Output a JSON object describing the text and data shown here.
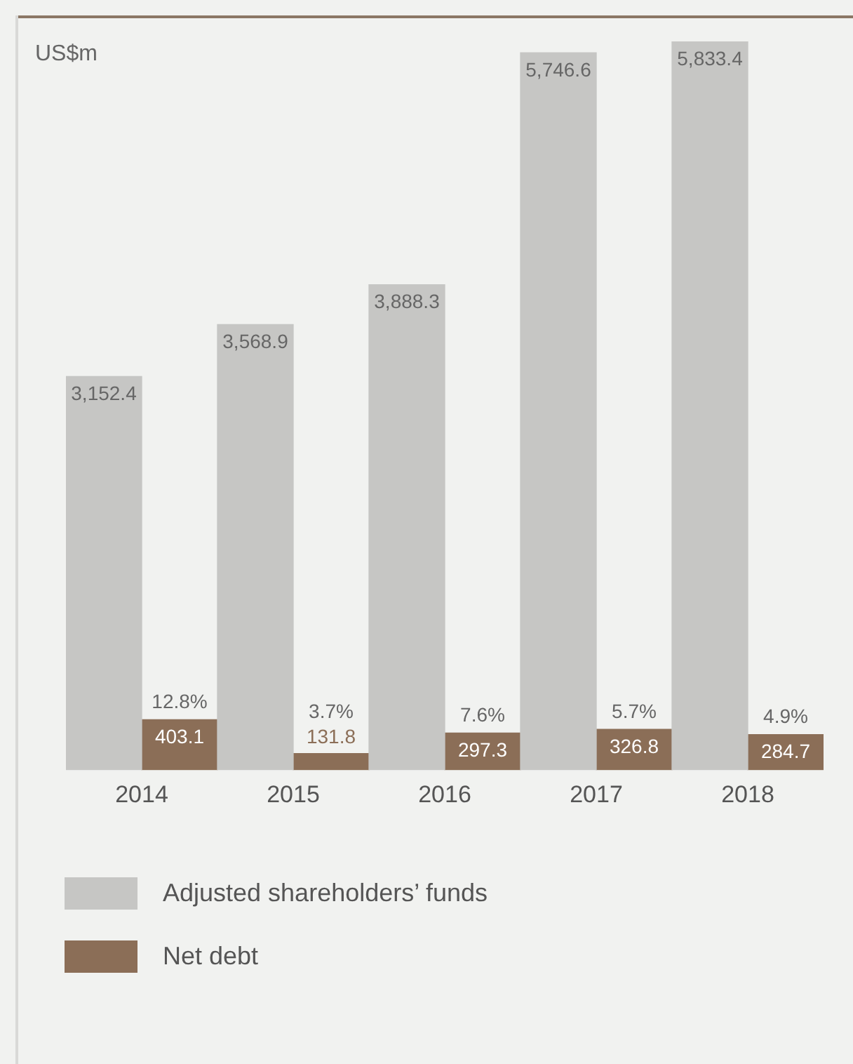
{
  "chart_data": {
    "type": "bar",
    "ylabel": "US$m",
    "categories": [
      "2014",
      "2015",
      "2016",
      "2017",
      "2018"
    ],
    "series": [
      {
        "name": "Adjusted shareholders’ funds",
        "color": "#c6c6c4",
        "values": [
          3152.4,
          3568.9,
          3888.3,
          5746.6,
          5833.4
        ],
        "value_labels": [
          "3,152.4",
          "3,568.9",
          "3,888.3",
          "5,746.6",
          "5,833.4"
        ]
      },
      {
        "name": "Net debt",
        "color": "#8b6e57",
        "values": [
          403.1,
          131.8,
          297.3,
          326.8,
          284.7
        ],
        "value_labels": [
          "403.1",
          "131.8",
          "297.3",
          "326.8",
          "284.7"
        ]
      }
    ],
    "ylim": [
      0,
      6000
    ],
    "tick_labels": "x",
    "grid": false,
    "legend": "bottom",
    "annotations": [
      {
        "text": "12.8%",
        "x": "2014",
        "y": 403.1
      },
      {
        "text": "3.7%",
        "x": "2015",
        "y": 131.8
      },
      {
        "text": "7.6%",
        "x": "2016",
        "y": 297.3
      },
      {
        "text": "5.7%",
        "x": "2017",
        "y": 326.8
      },
      {
        "text": "4.9%",
        "x": "2018",
        "y": 284.7
      }
    ]
  }
}
